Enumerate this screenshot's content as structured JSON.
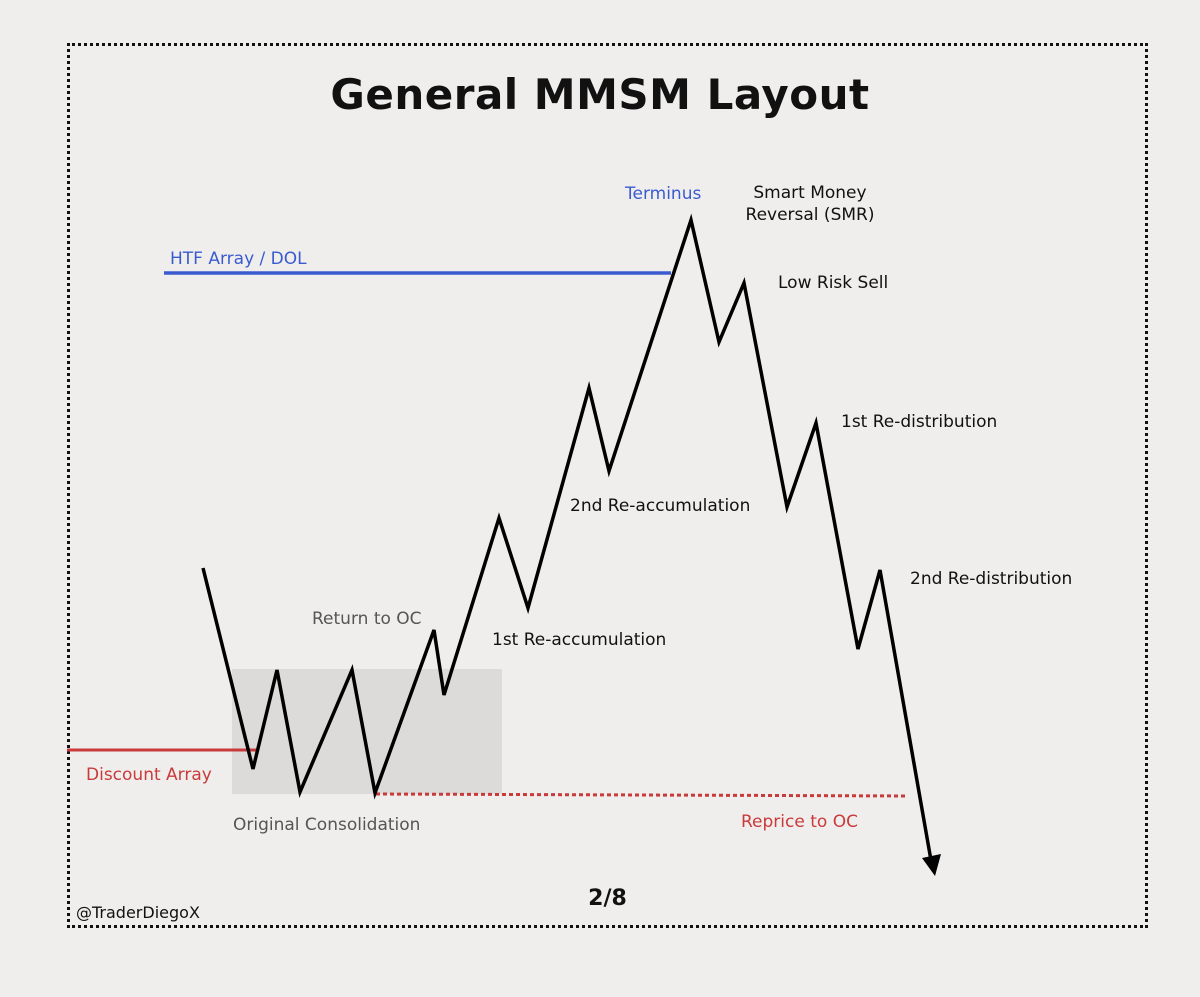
{
  "title": "General MMSM Layout",
  "labels": {
    "terminus": "Terminus",
    "smr_line1": "Smart Money",
    "smr_line2": "Reversal (SMR)",
    "htf_array": "HTF Array / DOL",
    "low_risk_sell": "Low Risk Sell",
    "first_redistribution": "1st Re-distribution",
    "second_reaccumulation": "2nd Re-accumulation",
    "second_redistribution": "2nd Re-distribution",
    "return_to_oc": "Return to OC",
    "first_reaccumulation": "1st Re-accumulation",
    "discount_array": "Discount Array",
    "original_consolidation": "Original Consolidation",
    "reprice_to_oc": "Reprice to OC"
  },
  "footer": {
    "page": "2/8",
    "handle": "@TraderDiegoX"
  },
  "colors": {
    "background": "#f0eeed",
    "price_path": "#000000",
    "htf_line": "#3a5bd0",
    "discount_line": "#c93a3a",
    "consolidation_box": "#dcdbda"
  }
}
